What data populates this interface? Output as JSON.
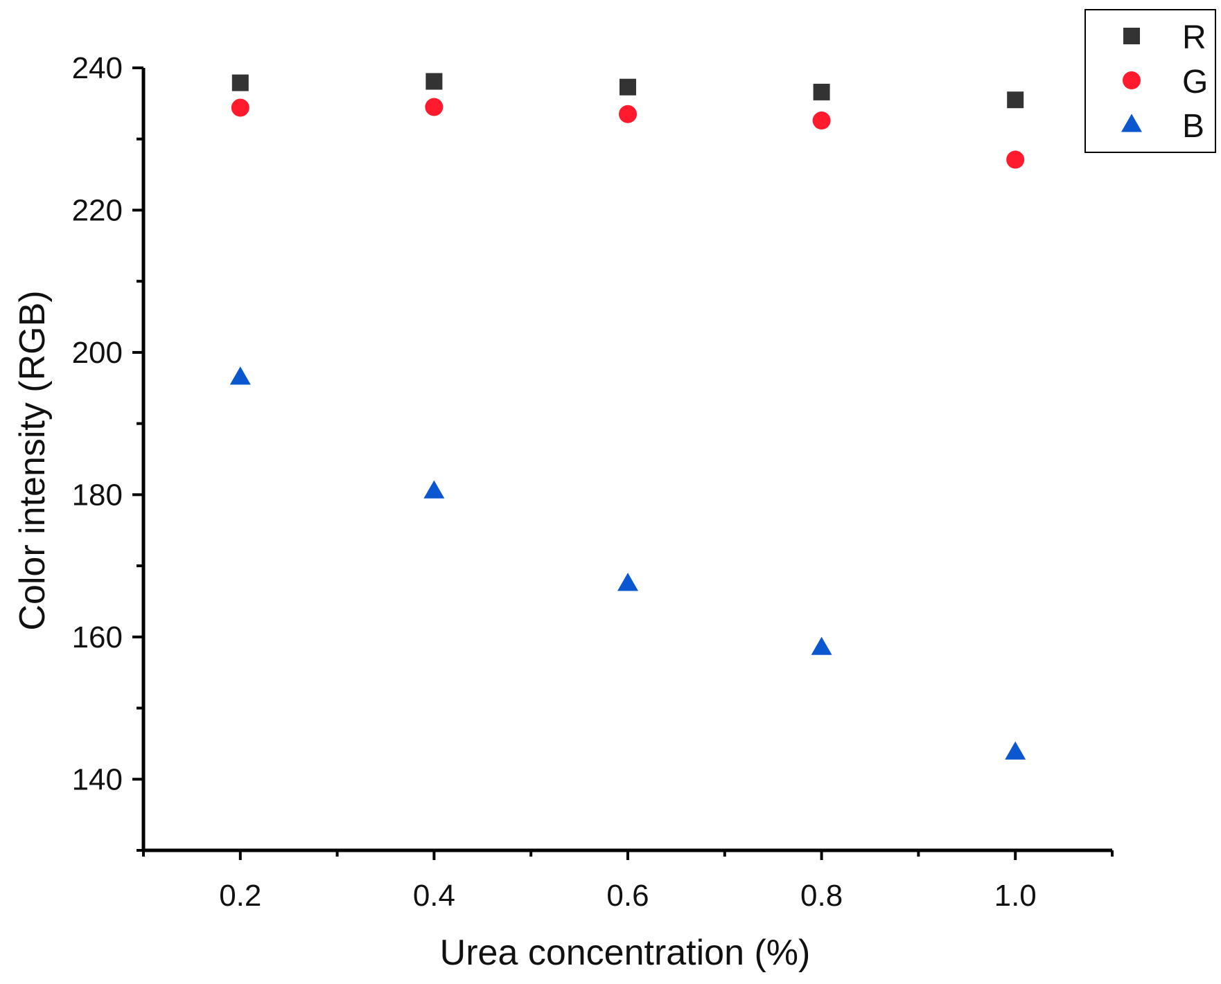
{
  "chart_data": {
    "type": "scatter",
    "title": "",
    "xlabel": "Urea concentration (%)",
    "ylabel": "Color intensity (RGB)",
    "xlim": [
      0.1,
      1.1
    ],
    "ylim": [
      130,
      240
    ],
    "x_ticks": [
      "0.2",
      "0.4",
      "0.6",
      "0.8",
      "1.0"
    ],
    "x_tick_values": [
      0.2,
      0.4,
      0.6,
      0.8,
      1.0
    ],
    "y_ticks": [
      "140",
      "160",
      "180",
      "200",
      "220",
      "240"
    ],
    "y_tick_values": [
      140,
      160,
      180,
      200,
      220,
      240
    ],
    "grid": false,
    "legend_position": "top-right",
    "x": [
      0.2,
      0.4,
      0.6,
      0.8,
      1.0
    ],
    "series": [
      {
        "name": "R",
        "marker": "square",
        "color": "#333333",
        "values": [
          237.9,
          238.1,
          237.3,
          236.6,
          235.5
        ]
      },
      {
        "name": "G",
        "marker": "circle",
        "color": "#ff1a2e",
        "values": [
          234.4,
          234.5,
          233.5,
          232.6,
          227.1
        ]
      },
      {
        "name": "B",
        "marker": "triangle",
        "color": "#0b57d0",
        "values": [
          196.5,
          180.5,
          167.5,
          158.5,
          143.8
        ]
      }
    ]
  }
}
